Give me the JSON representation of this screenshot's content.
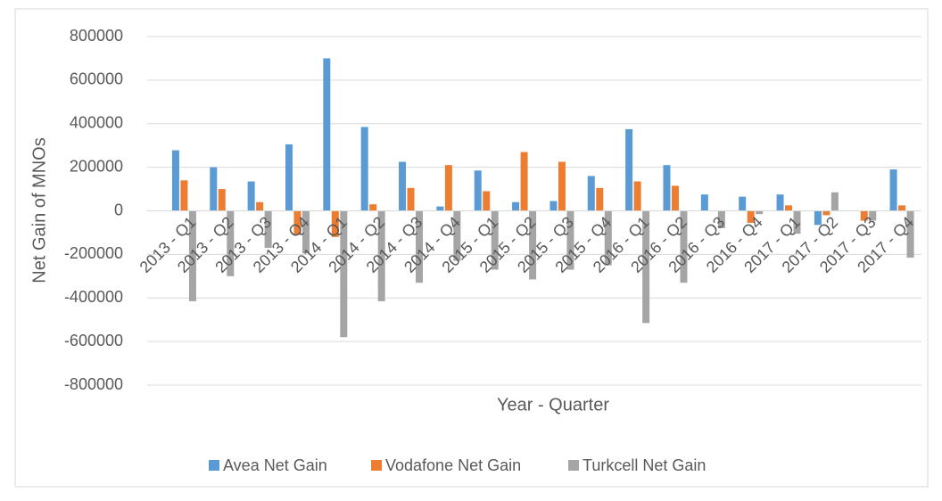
{
  "chart_data": {
    "type": "bar",
    "x_label": "Year - Quarter",
    "y_label": "Net Gain of MNOs",
    "categories": [
      "2013 - Q1",
      "2013 - Q2",
      "2013 - Q3",
      "2013 - Q4",
      "2014 - Q1",
      "2014 - Q2",
      "2014 - Q3",
      "2014 - Q4",
      "2015 - Q1",
      "2015 - Q2",
      "2015 - Q3",
      "2015 - Q4",
      "2016 - Q1",
      "2016 - Q2",
      "2016 - Q3",
      "2016 - Q4",
      "2017 - Q1",
      "2017 - Q2",
      "2017 - Q3",
      "2017 - Q4"
    ],
    "series": [
      {
        "name": "Avea Net Gain",
        "color": "#5b9bd5",
        "values": [
          278000,
          200000,
          135000,
          305000,
          700000,
          385000,
          225000,
          20000,
          185000,
          40000,
          45000,
          160000,
          375000,
          210000,
          75000,
          65000,
          75000,
          -65000,
          0,
          190000
        ]
      },
      {
        "name": "Vodafone Net Gain",
        "color": "#ed7d31",
        "values": [
          140000,
          100000,
          40000,
          -110000,
          -120000,
          30000,
          105000,
          210000,
          90000,
          270000,
          225000,
          105000,
          135000,
          115000,
          0,
          -55000,
          25000,
          -20000,
          -45000,
          25000
        ]
      },
      {
        "name": "Turkcell Net Gain",
        "color": "#a5a5a5",
        "values": [
          -415000,
          -300000,
          -170000,
          -195000,
          -580000,
          -415000,
          -330000,
          -230000,
          -270000,
          -315000,
          -270000,
          -250000,
          -515000,
          -330000,
          -80000,
          -15000,
          -105000,
          85000,
          -45000,
          -215000
        ]
      }
    ],
    "ylim": [
      -800000,
      800000
    ],
    "yticks": [
      -800000,
      -600000,
      -400000,
      -200000,
      0,
      200000,
      400000,
      600000,
      800000
    ],
    "grid": true,
    "legend": "bottom"
  }
}
